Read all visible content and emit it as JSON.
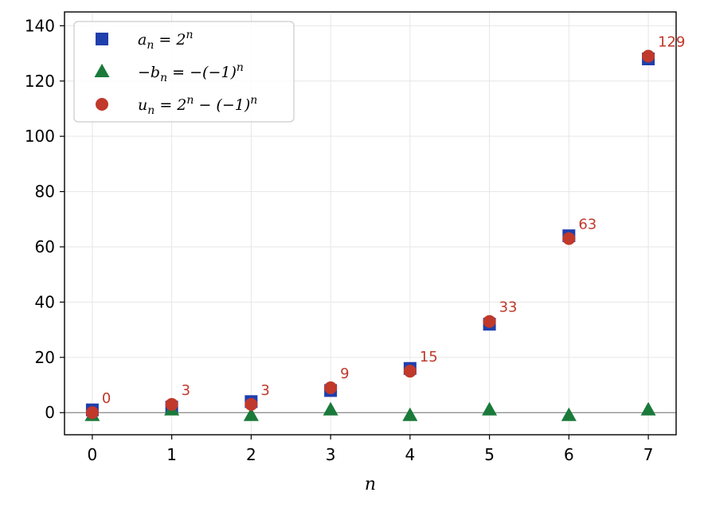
{
  "chart_data": {
    "type": "scatter",
    "xlabel": "n",
    "ylabel": "",
    "xlim": [
      -0.35,
      7.35
    ],
    "ylim": [
      -8,
      145
    ],
    "x": [
      0,
      1,
      2,
      3,
      4,
      5,
      6,
      7
    ],
    "xticks": [
      "0",
      "1",
      "2",
      "3",
      "4",
      "5",
      "6",
      "7"
    ],
    "yticks": [
      0,
      20,
      40,
      60,
      80,
      100,
      120,
      140
    ],
    "grid": true,
    "legend_position": "top-left",
    "series": [
      {
        "name": "a_n = 2^n",
        "legend_parts": {
          "main": "a",
          "sub": "n",
          "rest": " = 2",
          "sup": "n",
          "tail": ""
        },
        "marker": "square",
        "color": "#1f3fad",
        "values": [
          1,
          2,
          4,
          8,
          16,
          32,
          64,
          128
        ]
      },
      {
        "name": "-b_n = -(-1)^n",
        "legend_parts": {
          "main": "−b",
          "sub": "n",
          "rest": " = −(−1)",
          "sup": "n",
          "tail": ""
        },
        "marker": "triangle",
        "color": "#1a7a3a",
        "values": [
          -1,
          1,
          -1,
          1,
          -1,
          1,
          -1,
          1
        ]
      },
      {
        "name": "u_n = 2^n - (-1)^n",
        "legend_parts": {
          "main": "u",
          "sub": "n",
          "rest": " = 2",
          "sup": "n",
          "tail": " − (−1)",
          "sup2": "n"
        },
        "marker": "circle",
        "color": "#c0392b",
        "values": [
          0,
          3,
          3,
          9,
          15,
          33,
          63,
          129
        ],
        "data_labels": [
          "0",
          "3",
          "3",
          "9",
          "15",
          "33",
          "63",
          "129"
        ]
      }
    ],
    "zero_line": true
  }
}
